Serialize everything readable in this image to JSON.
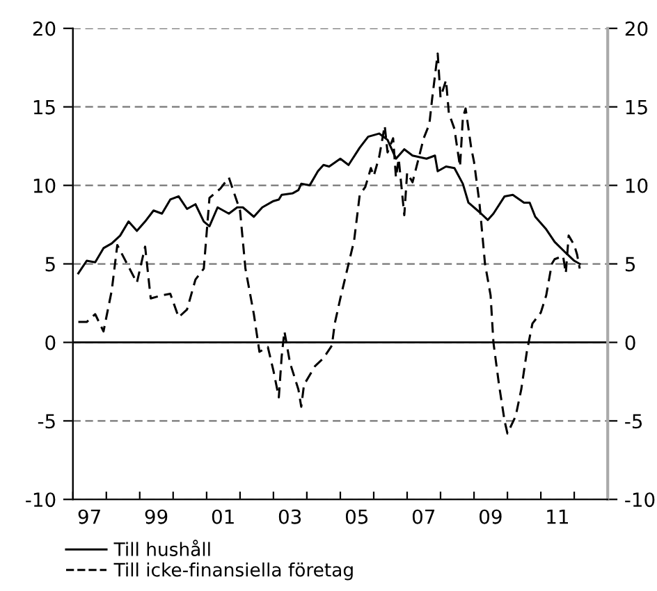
{
  "chart_data": {
    "type": "line",
    "legend": "bottom",
    "grid": "y",
    "xlim": [
      "1997-01",
      "2013-01"
    ],
    "xticks": [
      {
        "value": "1997-01",
        "label": null
      },
      {
        "value": "1998-01",
        "label": null
      },
      {
        "value": "1999-01",
        "label": null
      },
      {
        "value": "2000-01",
        "label": null
      },
      {
        "value": "2001-01",
        "label": null
      },
      {
        "value": "2002-01",
        "label": null
      },
      {
        "value": "2003-01",
        "label": null
      },
      {
        "value": "2004-01",
        "label": null
      },
      {
        "value": "2005-01",
        "label": null
      },
      {
        "value": "2006-01",
        "label": null
      },
      {
        "value": "2007-01",
        "label": null
      },
      {
        "value": "2008-01",
        "label": null
      },
      {
        "value": "2009-01",
        "label": null
      },
      {
        "value": "2010-01",
        "label": null
      },
      {
        "value": "2011-01",
        "label": null
      },
      {
        "value": "2012-01",
        "label": null
      },
      {
        "value": "2013-01",
        "label": null
      },
      {
        "value": "1997-07",
        "label": "97"
      },
      {
        "value": "1999-07",
        "label": "99"
      },
      {
        "value": "2001-07",
        "label": "01"
      },
      {
        "value": "2003-07",
        "label": "03"
      },
      {
        "value": "2005-07",
        "label": "05"
      },
      {
        "value": "2007-07",
        "label": "07"
      },
      {
        "value": "2009-07",
        "label": "09"
      },
      {
        "value": "2011-07",
        "label": "11"
      }
    ],
    "ylim": [
      -10,
      20
    ],
    "yticks": [
      -10,
      -5,
      0,
      5,
      10,
      15,
      20
    ],
    "y2lim": [
      -10,
      20
    ],
    "y2ticks": [
      -10,
      -5,
      0,
      5,
      10,
      15,
      20
    ],
    "ref_lines": [
      {
        "axis": "y",
        "value": 0,
        "color": "#000000",
        "line_style": "solid"
      }
    ],
    "series": [
      {
        "name": "Till hushåll",
        "color": "#000000",
        "line_style": "solid",
        "x": [
          "1997-03",
          "1997-06",
          "1997-09",
          "1997-12",
          "1998-03",
          "1998-06",
          "1998-09",
          "1998-12",
          "1999-03",
          "1999-06",
          "1999-09",
          "1999-12",
          "2000-03",
          "2000-06",
          "2000-09",
          "2000-12",
          "2001-02",
          "2001-05",
          "2001-09",
          "2001-12",
          "2002-02",
          "2002-06",
          "2002-09",
          "2003-01",
          "2003-03",
          "2003-04",
          "2003-08",
          "2003-10",
          "2003-11",
          "2004-02",
          "2004-05",
          "2004-07",
          "2004-09",
          "2005-01",
          "2005-04",
          "2005-08",
          "2005-11",
          "2006-03",
          "2006-06",
          "2006-09",
          "2006-12",
          "2007-03",
          "2007-08",
          "2007-11",
          "2007-12",
          "2008-03",
          "2008-06",
          "2008-09",
          "2008-11",
          "2009-03",
          "2009-06",
          "2009-08",
          "2009-12",
          "2010-03",
          "2010-07",
          "2010-09",
          "2010-11",
          "2011-03",
          "2011-06",
          "2011-10",
          "2012-01",
          "2012-03"
        ],
        "values": [
          4.4,
          5.2,
          5.1,
          6.0,
          6.3,
          6.8,
          7.7,
          7.1,
          7.7,
          8.4,
          8.2,
          9.1,
          9.3,
          8.5,
          8.8,
          7.7,
          7.4,
          8.6,
          8.2,
          8.6,
          8.6,
          8.0,
          8.6,
          9.0,
          9.1,
          9.4,
          9.5,
          9.7,
          10.1,
          10.0,
          10.9,
          11.3,
          11.2,
          11.7,
          11.3,
          12.4,
          13.1,
          13.3,
          12.9,
          11.7,
          12.3,
          11.9,
          11.7,
          11.9,
          10.9,
          11.2,
          11.1,
          10.1,
          8.9,
          8.3,
          7.8,
          8.2,
          9.3,
          9.4,
          8.9,
          8.9,
          8.0,
          7.2,
          6.4,
          5.7,
          5.2,
          5.0
        ]
      },
      {
        "name": "Till icke-finansiella företag",
        "color": "#000000",
        "line_style": "dashed",
        "x": [
          "1997-03",
          "1997-06",
          "1997-09",
          "1997-12",
          "1998-03",
          "1998-05",
          "1998-12",
          "1999-03",
          "1999-05",
          "1999-09",
          "1999-12",
          "2000-03",
          "2000-06",
          "2000-09",
          "2000-12",
          "2001-02",
          "2001-06",
          "2001-09",
          "2002-01",
          "2002-03",
          "2002-06",
          "2002-08",
          "2002-11",
          "2003-01",
          "2003-03",
          "2003-04",
          "2003-05",
          "2003-07",
          "2003-10",
          "2003-11",
          "2003-12",
          "2004-04",
          "2004-07",
          "2004-10",
          "2004-11",
          "2005-01",
          "2005-04",
          "2005-06",
          "2005-08",
          "2005-10",
          "2005-12",
          "2006-01",
          "2006-03",
          "2006-05",
          "2006-06",
          "2006-08",
          "2006-09",
          "2006-10",
          "2006-12",
          "2007-01",
          "2007-03",
          "2007-04",
          "2007-07",
          "2007-09",
          "2007-10",
          "2007-12",
          "2008-01",
          "2008-03",
          "2008-04",
          "2008-06",
          "2008-07",
          "2008-08",
          "2008-09",
          "2008-10",
          "2008-12",
          "2009-01",
          "2009-03",
          "2009-05",
          "2009-07",
          "2009-08",
          "2009-10",
          "2009-12",
          "2010-01",
          "2010-04",
          "2010-06",
          "2010-08",
          "2010-10",
          "2011-01",
          "2011-03",
          "2011-05",
          "2011-06",
          "2011-09",
          "2011-10",
          "2011-11",
          "2012-01",
          "2012-02",
          "2012-03"
        ],
        "values": [
          1.3,
          1.3,
          1.8,
          0.7,
          3.3,
          6.2,
          3.8,
          6.1,
          2.8,
          3.0,
          3.1,
          1.6,
          2.1,
          4.0,
          4.7,
          9.2,
          9.8,
          10.5,
          8.4,
          4.7,
          1.8,
          -0.6,
          -0.3,
          -1.8,
          -3.5,
          -0.9,
          0.7,
          -1.3,
          -3.0,
          -4.1,
          -2.7,
          -1.5,
          -1.0,
          -0.2,
          1.2,
          2.8,
          5.0,
          6.5,
          9.4,
          9.9,
          11.1,
          10.6,
          11.8,
          13.8,
          12.1,
          13.0,
          10.5,
          11.7,
          8.1,
          10.8,
          10.2,
          10.9,
          13.0,
          13.9,
          15.5,
          18.4,
          15.6,
          16.7,
          14.6,
          13.6,
          12.4,
          11.2,
          14.3,
          14.9,
          12.4,
          11.5,
          8.9,
          5.0,
          3.0,
          0.0,
          -2.7,
          -5.0,
          -5.8,
          -4.7,
          -3.0,
          -0.6,
          1.2,
          1.9,
          3.0,
          5.0,
          5.3,
          5.5,
          4.4,
          6.8,
          6.2,
          5.6,
          4.7
        ]
      }
    ]
  }
}
